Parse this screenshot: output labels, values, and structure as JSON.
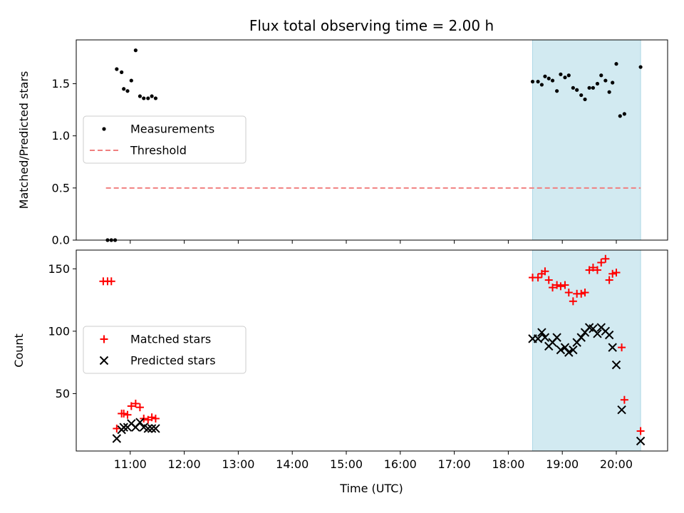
{
  "title": "Flux total observing time = 2.00 h",
  "xlabel": "Time (UTC)",
  "colors": {
    "matched": "#ff0000",
    "predicted": "#000000",
    "threshold": "#f08080",
    "shade": "#add8e6"
  },
  "chart_data": [
    {
      "type": "scatter",
      "ylabel": "Matched/Predicted stars",
      "ylim": [
        0,
        1.92
      ],
      "yticks": [
        "0.0",
        "0.5",
        "1.0",
        "1.5"
      ],
      "xlim": [
        10.0,
        20.95
      ],
      "xticks": [
        "11:00",
        "12:00",
        "13:00",
        "14:00",
        "15:00",
        "16:00",
        "17:00",
        "18:00",
        "19:00",
        "20:00"
      ],
      "shaded_region": [
        18.45,
        20.45
      ],
      "legend_position": "center-left",
      "threshold": {
        "name": "Threshold",
        "y": 0.5,
        "x": [
          10.55,
          20.45
        ]
      },
      "series": [
        {
          "name": "Measurements",
          "points": [
            [
              10.58,
              0
            ],
            [
              10.65,
              0
            ],
            [
              10.72,
              0
            ],
            [
              10.75,
              1.64
            ],
            [
              10.84,
              1.61
            ],
            [
              10.88,
              1.45
            ],
            [
              10.95,
              1.43
            ],
            [
              11.02,
              1.53
            ],
            [
              11.1,
              1.82
            ],
            [
              11.18,
              1.38
            ],
            [
              11.25,
              1.36
            ],
            [
              11.33,
              1.36
            ],
            [
              11.4,
              1.38
            ],
            [
              11.47,
              1.36
            ],
            [
              18.45,
              1.52
            ],
            [
              18.55,
              1.52
            ],
            [
              18.62,
              1.49
            ],
            [
              18.68,
              1.57
            ],
            [
              18.75,
              1.55
            ],
            [
              18.82,
              1.53
            ],
            [
              18.9,
              1.43
            ],
            [
              18.97,
              1.59
            ],
            [
              19.05,
              1.56
            ],
            [
              19.12,
              1.58
            ],
            [
              19.2,
              1.46
            ],
            [
              19.27,
              1.44
            ],
            [
              19.35,
              1.39
            ],
            [
              19.42,
              1.35
            ],
            [
              19.5,
              1.46
            ],
            [
              19.57,
              1.46
            ],
            [
              19.65,
              1.5
            ],
            [
              19.72,
              1.58
            ],
            [
              19.8,
              1.53
            ],
            [
              19.87,
              1.42
            ],
            [
              19.93,
              1.51
            ],
            [
              20.0,
              1.69
            ],
            [
              20.07,
              1.19
            ],
            [
              20.15,
              1.21
            ],
            [
              20.45,
              1.66
            ]
          ]
        }
      ]
    },
    {
      "type": "scatter",
      "ylabel": "Count",
      "ylim": [
        4,
        165
      ],
      "yticks": [
        "50",
        "100",
        "150"
      ],
      "xlim": [
        10.0,
        20.95
      ],
      "xticks": [
        "11:00",
        "12:00",
        "13:00",
        "14:00",
        "15:00",
        "16:00",
        "17:00",
        "18:00",
        "19:00",
        "20:00"
      ],
      "shaded_region": [
        18.45,
        20.45
      ],
      "legend_position": "center-left",
      "series": [
        {
          "name": "Matched stars",
          "marker": "plus",
          "points": [
            [
              10.5,
              140
            ],
            [
              10.58,
              140
            ],
            [
              10.65,
              140
            ],
            [
              10.75,
              22
            ],
            [
              10.84,
              34
            ],
            [
              10.88,
              34
            ],
            [
              10.95,
              33
            ],
            [
              11.02,
              40
            ],
            [
              11.1,
              42
            ],
            [
              11.18,
              39
            ],
            [
              11.25,
              30
            ],
            [
              11.33,
              29
            ],
            [
              11.4,
              31
            ],
            [
              11.47,
              30
            ],
            [
              18.45,
              143
            ],
            [
              18.55,
              143
            ],
            [
              18.62,
              146
            ],
            [
              18.68,
              148
            ],
            [
              18.75,
              141
            ],
            [
              18.82,
              135
            ],
            [
              18.9,
              137
            ],
            [
              18.97,
              136
            ],
            [
              19.05,
              137
            ],
            [
              19.12,
              131
            ],
            [
              19.2,
              124
            ],
            [
              19.27,
              130
            ],
            [
              19.35,
              130
            ],
            [
              19.42,
              131
            ],
            [
              19.5,
              149
            ],
            [
              19.57,
              151
            ],
            [
              19.65,
              149
            ],
            [
              19.72,
              155
            ],
            [
              19.8,
              158
            ],
            [
              19.87,
              141
            ],
            [
              19.93,
              146
            ],
            [
              20.0,
              147
            ],
            [
              20.1,
              87
            ],
            [
              20.15,
              45
            ],
            [
              20.45,
              20
            ]
          ]
        },
        {
          "name": "Predicted stars",
          "marker": "x",
          "points": [
            [
              10.75,
              14
            ],
            [
              10.84,
              21
            ],
            [
              10.88,
              23
            ],
            [
              10.95,
              23
            ],
            [
              11.02,
              26
            ],
            [
              11.1,
              23
            ],
            [
              11.18,
              27
            ],
            [
              11.25,
              23
            ],
            [
              11.33,
              22
            ],
            [
              11.4,
              22
            ],
            [
              11.47,
              22
            ],
            [
              18.45,
              94
            ],
            [
              18.55,
              94
            ],
            [
              18.62,
              99
            ],
            [
              18.68,
              95
            ],
            [
              18.75,
              88
            ],
            [
              18.82,
              91
            ],
            [
              18.9,
              95
            ],
            [
              18.97,
              85
            ],
            [
              19.05,
              87
            ],
            [
              19.12,
              83
            ],
            [
              19.2,
              85
            ],
            [
              19.27,
              91
            ],
            [
              19.35,
              95
            ],
            [
              19.42,
              99
            ],
            [
              19.5,
              103
            ],
            [
              19.57,
              102
            ],
            [
              19.65,
              98
            ],
            [
              19.72,
              103
            ],
            [
              19.8,
              100
            ],
            [
              19.87,
              97
            ],
            [
              19.93,
              87
            ],
            [
              20.0,
              73
            ],
            [
              20.1,
              37
            ],
            [
              20.45,
              12
            ]
          ]
        }
      ]
    }
  ]
}
